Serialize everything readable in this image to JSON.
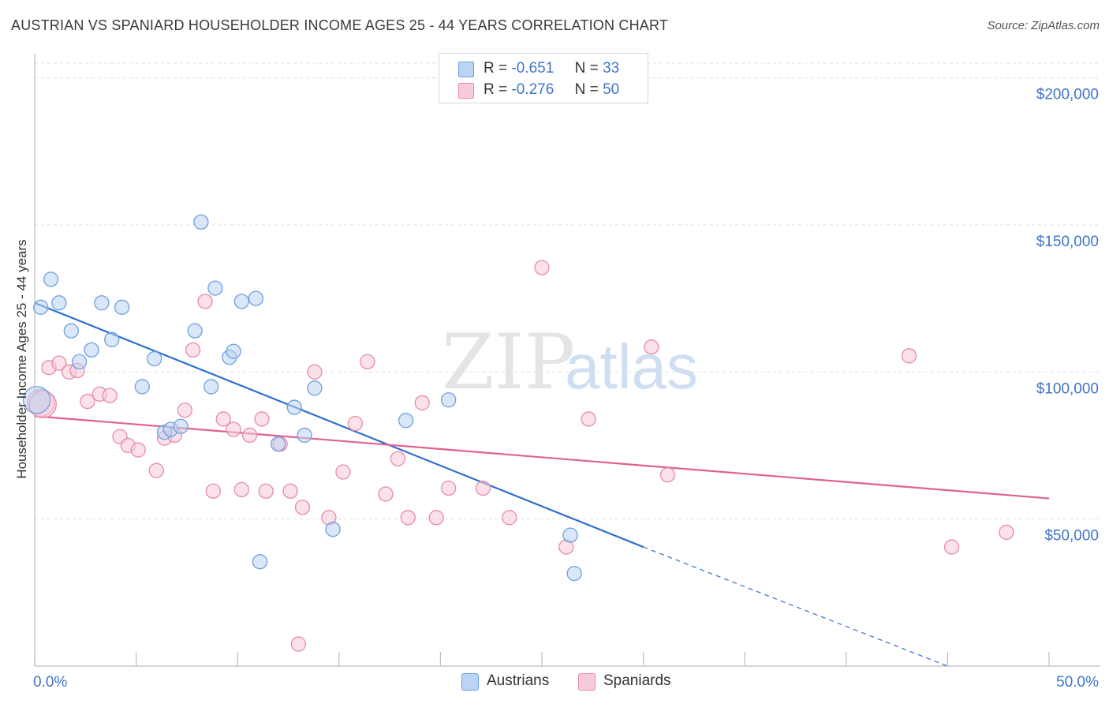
{
  "header": {
    "title": "AUSTRIAN VS SPANIARD HOUSEHOLDER INCOME AGES 25 - 44 YEARS CORRELATION CHART",
    "source": "Source: ZipAtlas.com"
  },
  "watermark": {
    "zip": "ZIP",
    "atlas": "atlas"
  },
  "legend": {
    "rows": [
      {
        "r_label": "R =",
        "r_value": "-0.651",
        "n_label": "N =",
        "n_value": "33",
        "color": "#a9c8f0",
        "border": "#5b8ed6"
      },
      {
        "r_label": "R =",
        "r_value": "-0.276",
        "n_label": "N =",
        "n_value": "50",
        "color": "#f7bfd0",
        "border": "#e58aa6"
      }
    ]
  },
  "bottom_legend": {
    "austrians": "Austrians",
    "spaniards": "Spaniards"
  },
  "chart_data": {
    "type": "scatter",
    "title": "AUSTRIAN VS SPANIARD HOUSEHOLDER INCOME AGES 25 - 44 YEARS CORRELATION CHART",
    "xlabel": "",
    "ylabel": "Householder Income Ages 25 - 44 years",
    "xlim": [
      0,
      50
    ],
    "ylim": [
      0,
      205000
    ],
    "x_tick_labels": [
      "0.0%",
      "50.0%"
    ],
    "y_ticks": [
      50000,
      100000,
      150000,
      200000
    ],
    "y_tick_labels": [
      "$50,000",
      "$100,000",
      "$150,000",
      "$200,000"
    ],
    "grid": true,
    "legend_position": "top-center",
    "colors": {
      "austrians": "#6d9fe0",
      "austrians_fill": "#bcd4f3",
      "spaniards": "#e88aa8",
      "spaniards_fill": "#f8cbd8",
      "austrians_line": "#2f6fce",
      "spaniards_line": "#e0628e",
      "axis_label": "#3f75c9"
    },
    "series": [
      {
        "name": "Austrians",
        "x": [
          0.3,
          0.8,
          1.2,
          1.8,
          2.2,
          2.8,
          3.3,
          3.8,
          4.3,
          5.3,
          5.9,
          6.4,
          6.7,
          7.2,
          7.9,
          8.2,
          8.7,
          8.9,
          9.6,
          9.8,
          10.2,
          10.9,
          11.1,
          12.0,
          12.8,
          13.3,
          13.8,
          14.7,
          18.3,
          20.4,
          26.4,
          26.6,
          0.1
        ],
        "y": [
          122000,
          131500,
          123500,
          114000,
          103500,
          107500,
          123500,
          111000,
          122000,
          95000,
          104500,
          79500,
          80500,
          81500,
          114000,
          151000,
          95000,
          128500,
          105000,
          107000,
          124000,
          125000,
          35500,
          75500,
          88000,
          78500,
          94500,
          46500,
          83500,
          90500,
          44500,
          31500,
          90500
        ]
      },
      {
        "name": "Spaniards",
        "x": [
          0.3,
          0.7,
          1.2,
          1.7,
          2.1,
          2.6,
          3.2,
          3.7,
          4.2,
          4.6,
          5.1,
          6.0,
          6.4,
          6.9,
          7.4,
          7.8,
          8.4,
          8.8,
          9.3,
          9.8,
          10.2,
          10.6,
          11.2,
          11.4,
          12.1,
          12.6,
          13.2,
          13.8,
          14.5,
          15.2,
          15.8,
          16.4,
          17.3,
          17.9,
          18.4,
          19.1,
          19.8,
          20.4,
          22.1,
          23.4,
          25.0,
          26.2,
          27.3,
          30.4,
          31.2,
          43.1,
          45.2,
          47.9,
          0.4,
          13.0
        ],
        "y": [
          89500,
          101500,
          103000,
          100000,
          100500,
          90000,
          92500,
          92000,
          78000,
          75000,
          73500,
          66500,
          77500,
          78500,
          87000,
          107500,
          124000,
          59500,
          84000,
          80500,
          60000,
          78500,
          84000,
          59500,
          75500,
          59500,
          54000,
          100000,
          50500,
          66000,
          82500,
          103500,
          58500,
          70500,
          50500,
          89500,
          50500,
          60500,
          60500,
          50500,
          135500,
          40500,
          84000,
          108500,
          65000,
          105500,
          40500,
          45500,
          89000,
          7500
        ]
      }
    ],
    "trend_lines": [
      {
        "name": "Austrians",
        "x": [
          0,
          30
        ],
        "y": [
          123500,
          40500
        ],
        "dashed_extension_to": [
          45,
          0
        ]
      },
      {
        "name": "Spaniards",
        "x": [
          0,
          50
        ],
        "y": [
          85000,
          57000
        ]
      }
    ]
  }
}
